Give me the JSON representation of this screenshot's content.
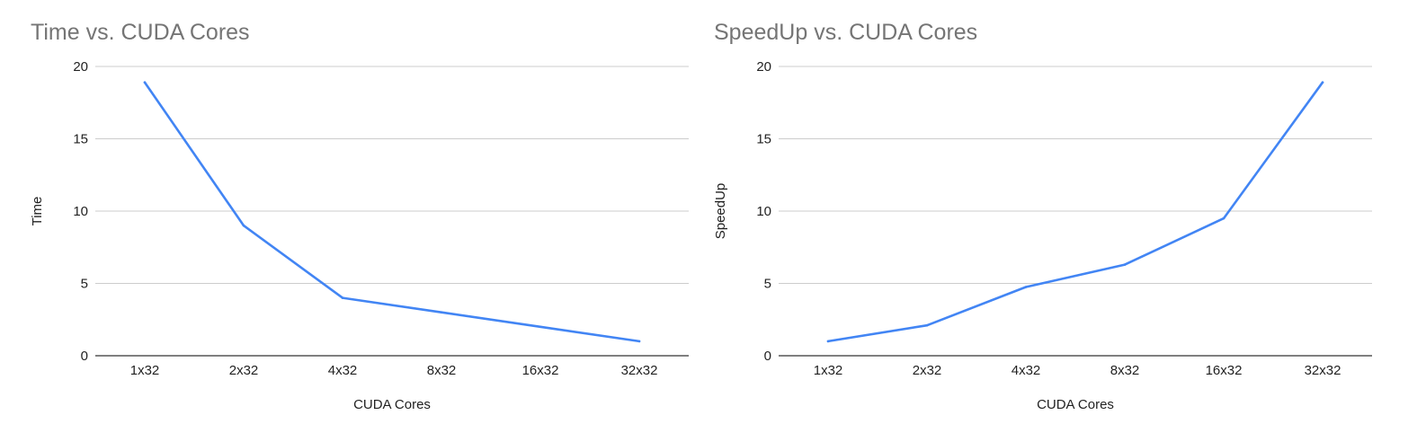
{
  "chart_data": [
    {
      "type": "line",
      "title": "Time vs. CUDA Cores",
      "xlabel": "CUDA Cores",
      "ylabel": "Time",
      "categories": [
        "1x32",
        "2x32",
        "4x32",
        "8x32",
        "16x32",
        "32x32"
      ],
      "series": [
        {
          "values": [
            18.9,
            9.0,
            4.0,
            3.0,
            2.0,
            1.0
          ],
          "color": "#4285f4"
        }
      ],
      "ylim": [
        0,
        20
      ],
      "yticks": [
        0,
        5,
        10,
        15,
        20
      ],
      "grid": true,
      "legend": "none"
    },
    {
      "type": "line",
      "title": "SpeedUp vs. CUDA Cores",
      "xlabel": "CUDA Cores",
      "ylabel": "SpeedUp",
      "categories": [
        "1x32",
        "2x32",
        "4x32",
        "8x32",
        "16x32",
        "32x32"
      ],
      "series": [
        {
          "values": [
            1.0,
            2.1,
            4.75,
            6.3,
            9.5,
            18.9
          ],
          "color": "#4285f4"
        }
      ],
      "ylim": [
        0,
        20
      ],
      "yticks": [
        0,
        5,
        10,
        15,
        20
      ],
      "grid": true,
      "legend": "none"
    }
  ]
}
